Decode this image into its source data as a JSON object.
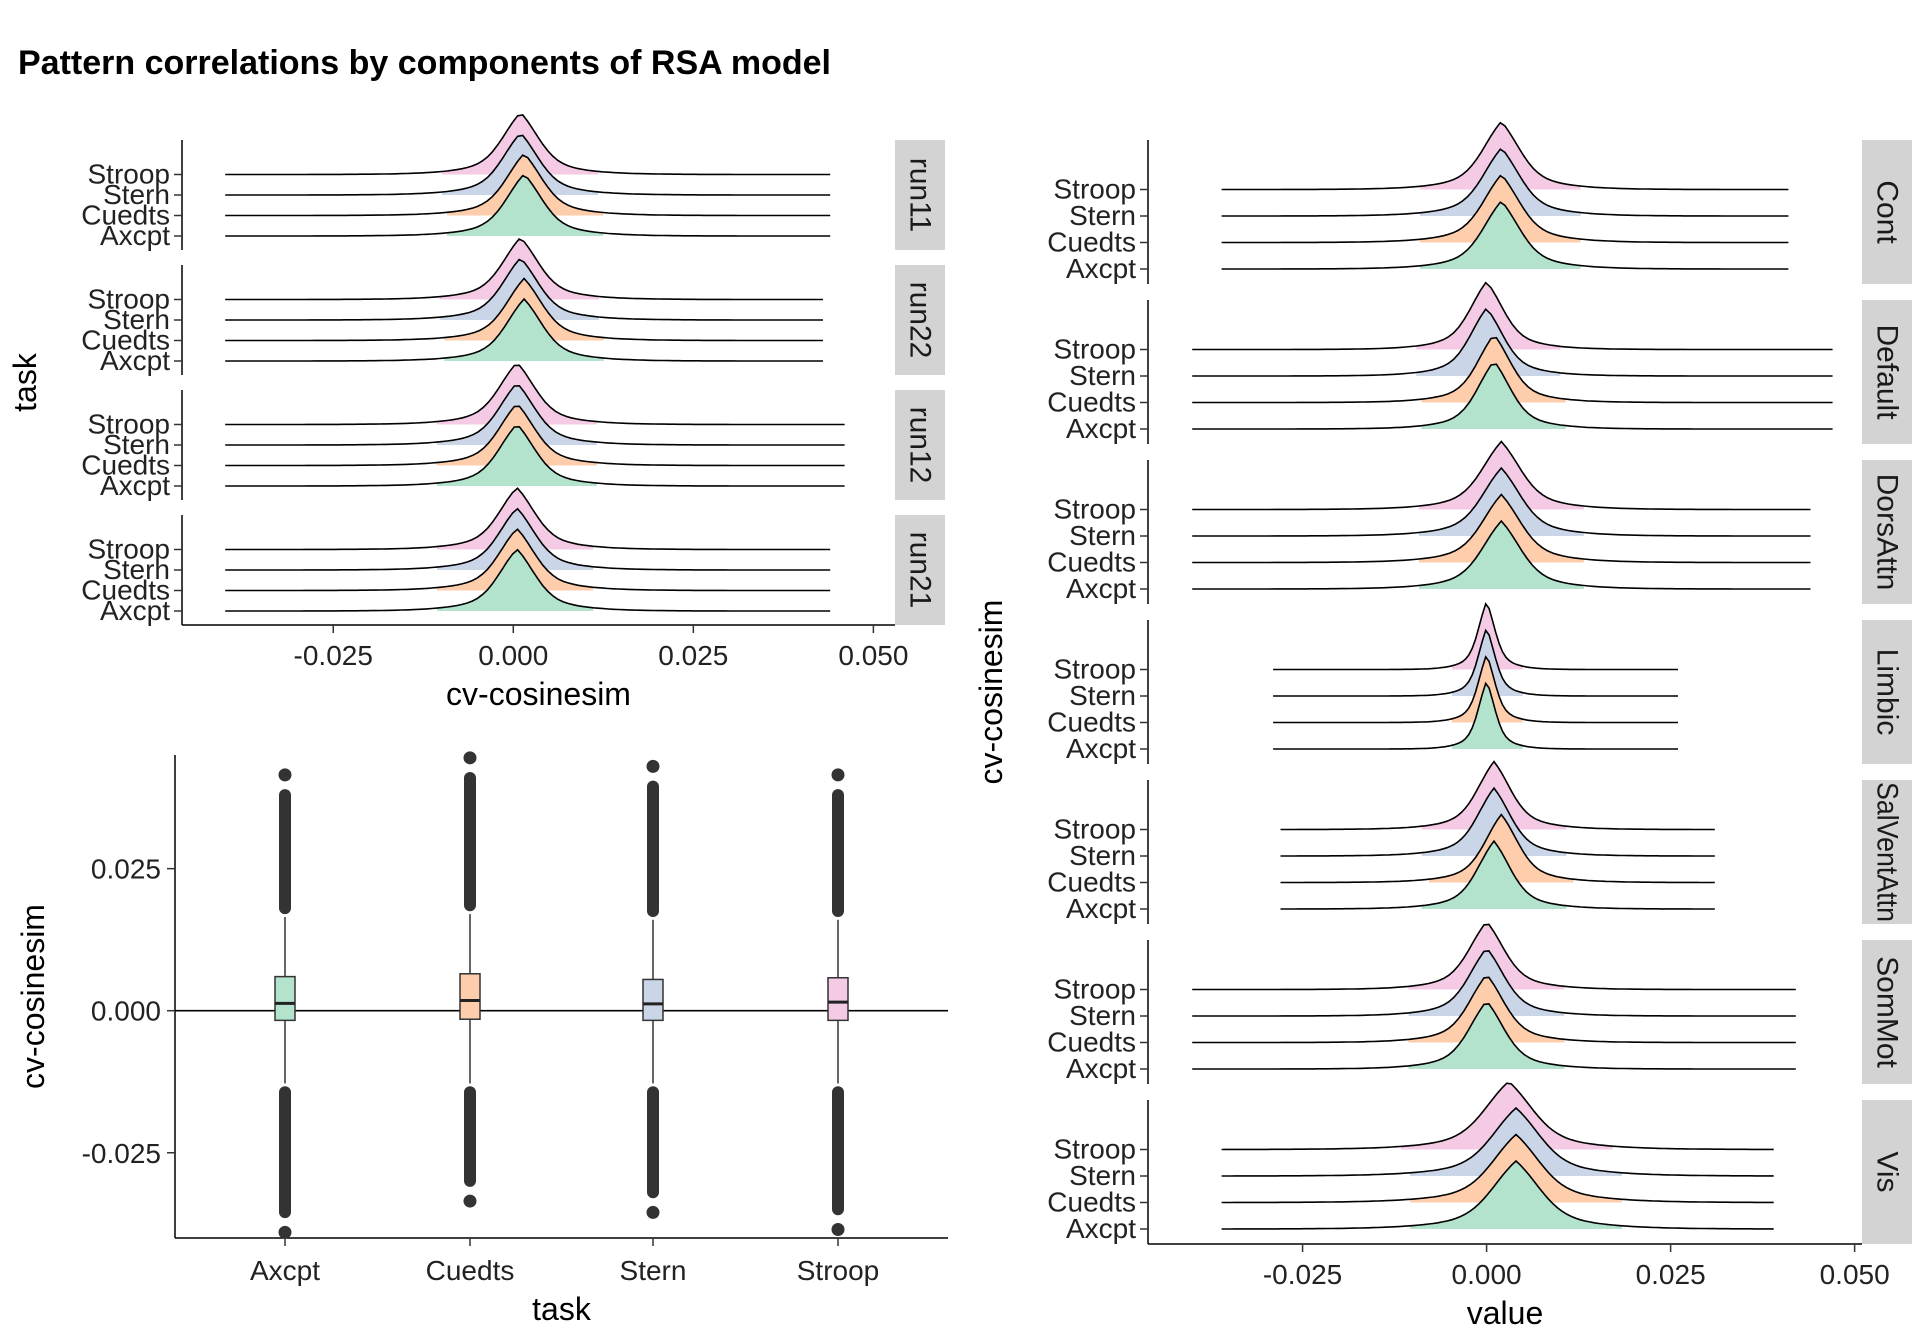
{
  "title": "Pattern correlations by components of RSA model",
  "colors": {
    "Axcpt": "#b3e2cd",
    "Cuedts": "#fdcdac",
    "Stern": "#cbd5e8",
    "Stroop": "#f4cae4",
    "strip": "#d3d3d3"
  },
  "chart_data": [
    {
      "name": "runs-ridgeline",
      "type": "ridgeline",
      "tasks": [
        "Axcpt",
        "Cuedts",
        "Stern",
        "Stroop"
      ],
      "xlabel": "cv-cosinesim",
      "ylabel": "task",
      "xticks": [
        "-0.025",
        "0.000",
        "0.025",
        "0.050"
      ],
      "xlim": [
        -0.046,
        0.053
      ],
      "panels": [
        {
          "label": "run11",
          "range": [
            -0.04,
            0.044
          ],
          "peaks": {
            "Axcpt": 0.0015,
            "Cuedts": 0.0015,
            "Stern": 0.001,
            "Stroop": 0.001
          }
        },
        {
          "label": "run22",
          "range": [
            -0.04,
            0.043
          ],
          "peaks": {
            "Axcpt": 0.0015,
            "Cuedts": 0.0015,
            "Stern": 0.001,
            "Stroop": 0.001
          }
        },
        {
          "label": "run12",
          "range": [
            -0.04,
            0.046
          ],
          "peaks": {
            "Axcpt": 0.0005,
            "Cuedts": 0.0005,
            "Stern": 0.0005,
            "Stroop": 0.0005
          }
        },
        {
          "label": "run21",
          "range": [
            -0.04,
            0.044
          ],
          "peaks": {
            "Axcpt": 0.0005,
            "Cuedts": 0.0005,
            "Stern": 0.0005,
            "Stroop": 0.0005
          }
        }
      ]
    },
    {
      "name": "task-boxplot",
      "type": "boxplot",
      "categories": [
        "Axcpt",
        "Cuedts",
        "Stern",
        "Stroop"
      ],
      "xlabel": "task",
      "ylabel": "cv-cosinesim",
      "yticks": [
        "0.025",
        "0.000",
        "-0.025"
      ],
      "ylim": [
        -0.04,
        0.045
      ],
      "hline": 0.0,
      "boxes": [
        {
          "task": "Axcpt",
          "q1": -0.0017,
          "median": 0.0013,
          "q3": 0.006,
          "wmin": -0.0128,
          "wmax": 0.0165,
          "max": 0.0415,
          "min": -0.039
        },
        {
          "task": "Cuedts",
          "q1": -0.0015,
          "median": 0.0018,
          "q3": 0.0065,
          "wmin": -0.0128,
          "wmax": 0.017,
          "max": 0.0445,
          "min": -0.0335
        },
        {
          "task": "Stern",
          "q1": -0.0017,
          "median": 0.0012,
          "q3": 0.0055,
          "wmin": -0.0128,
          "wmax": 0.016,
          "max": 0.043,
          "min": -0.0355
        },
        {
          "task": "Stroop",
          "q1": -0.0017,
          "median": 0.0015,
          "q3": 0.0058,
          "wmin": -0.0128,
          "wmax": 0.016,
          "max": 0.0415,
          "min": -0.0385
        }
      ]
    },
    {
      "name": "networks-ridgeline",
      "type": "ridgeline",
      "tasks": [
        "Axcpt",
        "Cuedts",
        "Stern",
        "Stroop"
      ],
      "xlabel": "value",
      "ylabel": "cv-cosinesim",
      "xticks": [
        "-0.025",
        "0.000",
        "0.025",
        "0.050"
      ],
      "xlim": [
        -0.046,
        0.051
      ],
      "panels": [
        {
          "label": "Cont",
          "range": [
            -0.036,
            0.041
          ],
          "peaks": {
            "Axcpt": 0.002,
            "Cuedts": 0.002,
            "Stern": 0.002,
            "Stroop": 0.002
          },
          "width": 1.0
        },
        {
          "label": "Default",
          "range": [
            -0.04,
            0.047
          ],
          "peaks": {
            "Axcpt": 0.001,
            "Cuedts": 0.001,
            "Stern": 0.0,
            "Stroop": 0.0
          },
          "width": 0.9
        },
        {
          "label": "DorsAttn",
          "range": [
            -0.04,
            0.044
          ],
          "peaks": {
            "Axcpt": 0.002,
            "Cuedts": 0.002,
            "Stern": 0.002,
            "Stroop": 0.002
          },
          "width": 1.05
        },
        {
          "label": "Limbic",
          "range": [
            -0.029,
            0.026
          ],
          "peaks": {
            "Axcpt": 0.0,
            "Cuedts": 0.0,
            "Stern": 0.0,
            "Stroop": 0.0
          },
          "width": 0.45
        },
        {
          "label": "SalVentAttn",
          "range": [
            -0.028,
            0.031
          ],
          "peaks": {
            "Axcpt": 0.001,
            "Cuedts": 0.002,
            "Stern": 0.001,
            "Stroop": 0.001
          },
          "width": 0.9
        },
        {
          "label": "SomMot",
          "range": [
            -0.04,
            0.042
          ],
          "peaks": {
            "Axcpt": 0.0,
            "Cuedts": 0.0,
            "Stern": 0.0,
            "Stroop": 0.0
          },
          "width": 0.95
        },
        {
          "label": "Vis",
          "range": [
            -0.036,
            0.039
          ],
          "peaks": {
            "Axcpt": 0.004,
            "Cuedts": 0.004,
            "Stern": 0.004,
            "Stroop": 0.003
          },
          "width": 1.3
        }
      ]
    }
  ]
}
